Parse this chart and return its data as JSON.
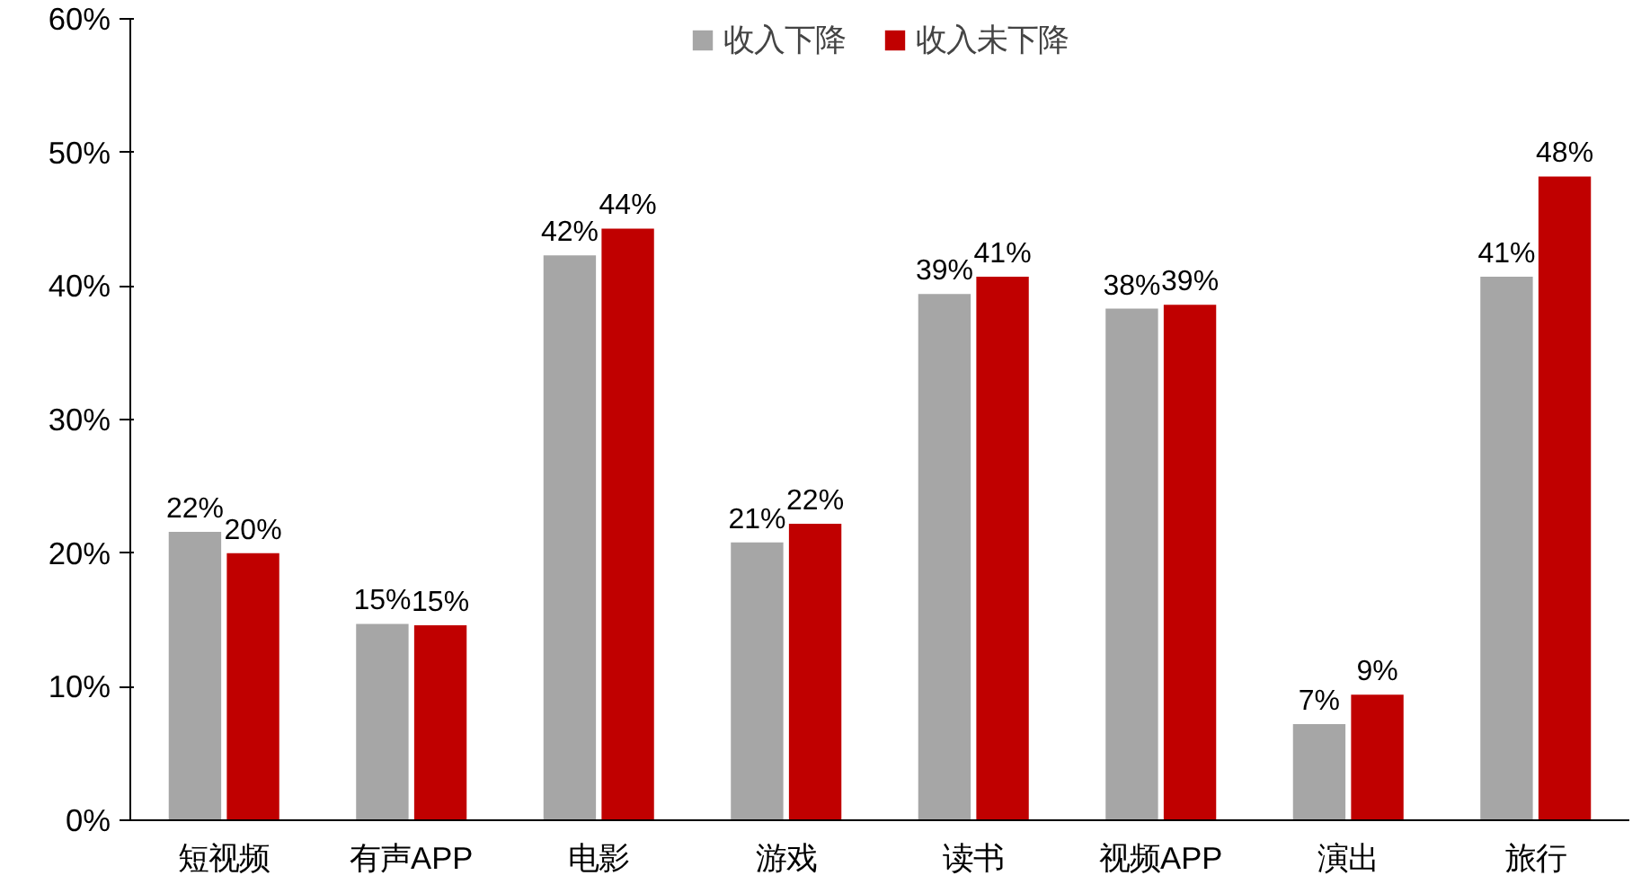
{
  "chart_data": {
    "type": "bar",
    "categories": [
      "短视频",
      "有声APP",
      "电影",
      "游戏",
      "读书",
      "视频APP",
      "演出",
      "旅行"
    ],
    "series": [
      {
        "name": "收入下降",
        "color": "#a6a6a6",
        "values": [
          21.6,
          14.7,
          42.3,
          20.8,
          39.4,
          38.3,
          7.2,
          40.7
        ],
        "value_labels": [
          "22%",
          "15%",
          "42%",
          "21%",
          "39%",
          "38%",
          "7%",
          "41%"
        ]
      },
      {
        "name": "收入未下降",
        "color": "#c00000",
        "values": [
          20.0,
          14.6,
          44.3,
          22.2,
          40.7,
          38.6,
          9.4,
          48.2
        ],
        "value_labels": [
          "20%",
          "15%",
          "44%",
          "22%",
          "41%",
          "39%",
          "9%",
          "48%"
        ]
      }
    ],
    "ylim": [
      0,
      60
    ],
    "yticks": [
      {
        "value": 0,
        "label": "0%"
      },
      {
        "value": 10,
        "label": "10%"
      },
      {
        "value": 20,
        "label": "20%"
      },
      {
        "value": 30,
        "label": "30%"
      },
      {
        "value": 40,
        "label": "40%"
      },
      {
        "value": 50,
        "label": "50%"
      },
      {
        "value": 60,
        "label": "60%"
      }
    ],
    "grid": false,
    "legend": "top"
  }
}
